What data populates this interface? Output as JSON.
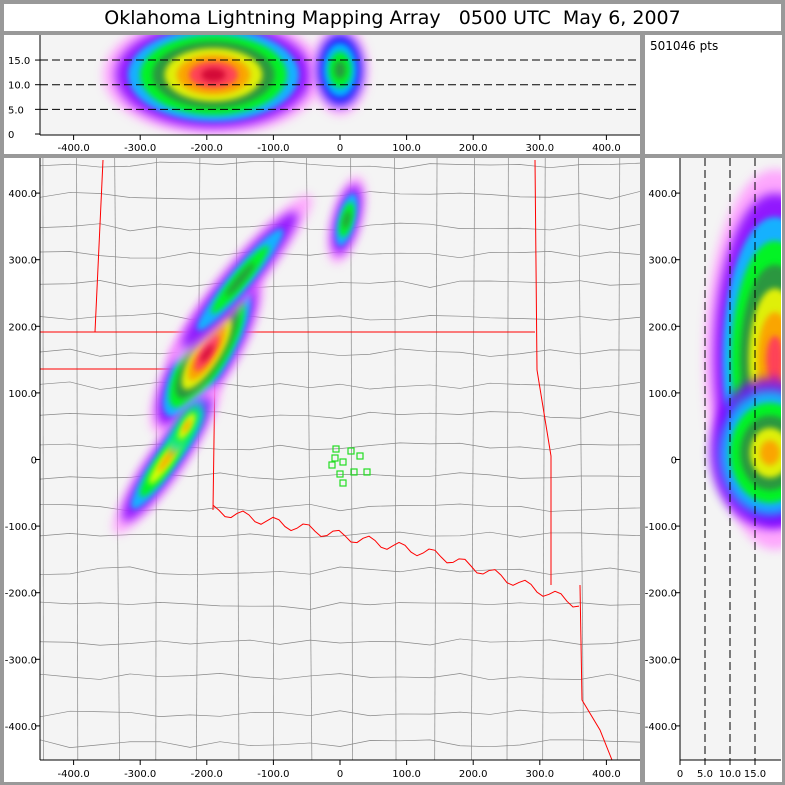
{
  "title": "Oklahoma Lightning Mapping Array   0500 UTC  May 6, 2007",
  "point_count": "501046 pts",
  "colors": {
    "background": "#999999",
    "plot_bg": "#f4f4f4",
    "state_border": "#ff0000",
    "county_border": "#888888",
    "station": "#22dd22"
  },
  "chart_data": [
    {
      "type": "heatmap",
      "panel": "altitude-vs-east-west",
      "xlim": [
        -450,
        450
      ],
      "ylim": [
        0,
        20
      ],
      "xticks": [
        "-400.0",
        "-300.0",
        "-200.0",
        "-100.0",
        "0",
        "100.0",
        "200.0",
        "300.0",
        "400.0"
      ],
      "yticks": [
        "0",
        "5.0",
        "10.0",
        "15.0"
      ],
      "grid": "dashed horizontal at 5, 10, 15",
      "colormap": [
        "#ff99ff",
        "#7f00ff",
        "#0000ff",
        "#00ccff",
        "#00ff00",
        "#338844",
        "#ffff00",
        "#ff9900",
        "#ff3366",
        "#cc0033"
      ]
    },
    {
      "type": "heatmap",
      "panel": "plan-view-map",
      "xlim": [
        -450,
        450
      ],
      "ylim": [
        -450,
        450
      ],
      "xticks": [
        "-400.0",
        "-300.0",
        "-200.0",
        "-100.0",
        "0",
        "100.0",
        "200.0",
        "300.0",
        "400.0"
      ],
      "yticks": [
        "-400.0",
        "-300.0",
        "-200.0",
        "-100.0",
        "0",
        "100.0",
        "200.0",
        "300.0",
        "400.0"
      ]
    },
    {
      "type": "heatmap",
      "panel": "north-south-vs-altitude",
      "xlim": [
        0,
        20
      ],
      "ylim": [
        -450,
        450
      ],
      "xticks": [
        "0",
        "5.0",
        "10.0",
        "15.0"
      ],
      "yticks": [
        "-400.0",
        "-300.0",
        "-200.0",
        "-100.0",
        "0",
        "100.0",
        "200.0",
        "300.0",
        "400.0"
      ],
      "grid": "dashed vertical at 5, 10, 15"
    }
  ]
}
